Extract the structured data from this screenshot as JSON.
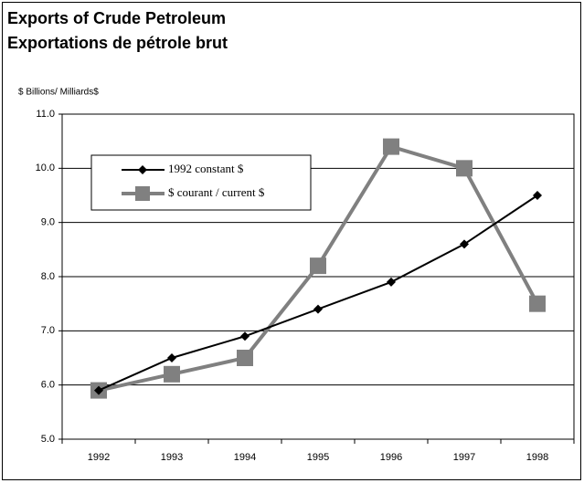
{
  "chart_data": {
    "type": "line",
    "title": "Exports of Crude Petroleum",
    "subtitle": "Exportations de pétrole brut",
    "y_axis_label": "$ Billions/ Milliards$",
    "categories": [
      "1992",
      "1993",
      "1994",
      "1995",
      "1996",
      "1997",
      "1998"
    ],
    "series": [
      {
        "name": "1992 constant $",
        "color": "#000000",
        "marker": "diamond",
        "values": [
          5.9,
          6.5,
          6.9,
          7.4,
          7.9,
          8.6,
          9.5
        ]
      },
      {
        "name": "$ courant / current $",
        "color": "#808080",
        "marker": "square",
        "values": [
          5.9,
          6.2,
          6.5,
          8.2,
          10.4,
          10.0,
          7.5
        ]
      }
    ],
    "ylim": [
      5,
      11
    ],
    "yticks": [
      {
        "value": 5,
        "label": "5.0"
      },
      {
        "value": 6,
        "label": "6.0"
      },
      {
        "value": 7,
        "label": "7.0"
      },
      {
        "value": 8,
        "label": "8.0"
      },
      {
        "value": 9,
        "label": "9.0"
      },
      {
        "value": 10,
        "label": "10.0"
      },
      {
        "value": 11,
        "label": "11.0"
      }
    ],
    "grid": true
  }
}
